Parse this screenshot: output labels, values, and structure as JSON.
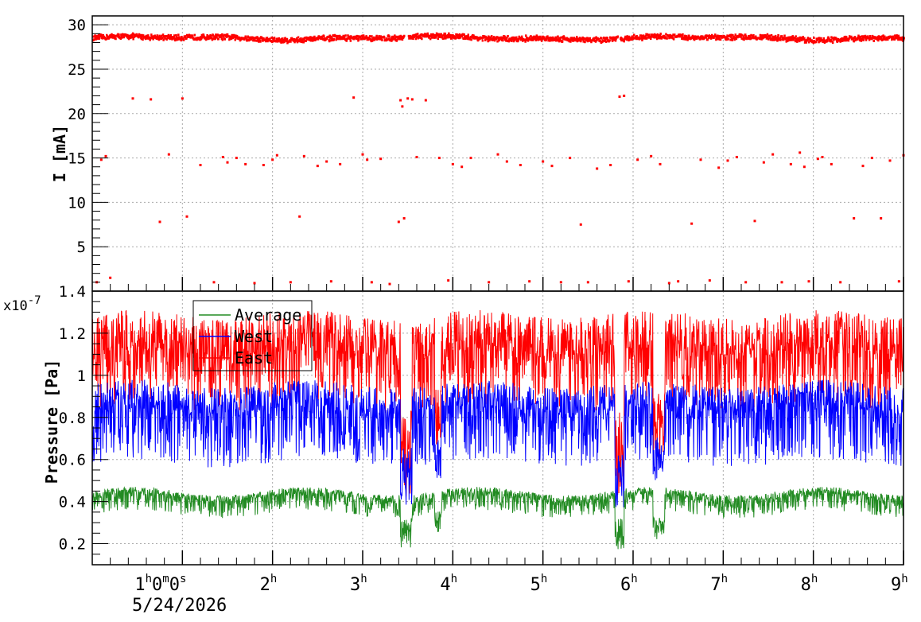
{
  "chart_data": [
    {
      "type": "scatter",
      "ylabel": "I [mA]",
      "ylim": [
        0,
        31
      ],
      "xlim": [
        0,
        9
      ],
      "grid": true,
      "y_ticks": [
        "5",
        "10",
        "15",
        "20",
        "25",
        "30"
      ],
      "series": [
        {
          "color": "#ff0000",
          "band_level": 28.5,
          "band_noise": 0.35,
          "x": [
            0.05,
            0.1,
            0.15,
            0.2,
            0.45,
            0.65,
            0.75,
            0.85,
            1.0,
            1.05,
            1.2,
            1.35,
            1.45,
            1.5,
            1.6,
            1.7,
            1.8,
            1.9,
            2.0,
            2.05,
            2.2,
            2.3,
            2.35,
            2.5,
            2.6,
            2.65,
            2.75,
            2.9,
            3.0,
            3.05,
            3.1,
            3.2,
            3.3,
            3.4,
            3.42,
            3.44,
            3.46,
            3.5,
            3.55,
            3.6,
            3.7,
            3.85,
            3.95,
            4.0,
            4.1,
            4.2,
            4.4,
            4.5,
            4.6,
            4.75,
            4.85,
            5.0,
            5.1,
            5.2,
            5.3,
            5.42,
            5.5,
            5.6,
            5.75,
            5.85,
            5.9,
            5.95,
            6.05,
            6.2,
            6.3,
            6.4,
            6.5,
            6.65,
            6.75,
            6.85,
            6.95,
            7.05,
            7.15,
            7.25,
            7.35,
            7.45,
            7.55,
            7.65,
            7.75,
            7.85,
            7.9,
            7.95,
            8.05,
            8.1,
            8.2,
            8.3,
            8.45,
            8.55,
            8.65,
            8.75,
            8.85,
            8.95,
            9.0
          ],
          "y": [
            1.0,
            14.8,
            15.2,
            1.5,
            21.7,
            21.6,
            7.8,
            15.4,
            21.7,
            8.4,
            14.2,
            1.0,
            15.1,
            14.5,
            15.0,
            14.3,
            0.9,
            14.2,
            14.8,
            15.3,
            1.0,
            8.4,
            15.2,
            14.1,
            14.6,
            1.1,
            14.3,
            21.8,
            15.4,
            14.8,
            1.0,
            14.9,
            0.8,
            7.8,
            21.5,
            20.8,
            8.2,
            21.7,
            21.6,
            15.1,
            21.5,
            15.0,
            1.2,
            14.3,
            14.0,
            15.0,
            1.0,
            15.4,
            14.6,
            14.2,
            1.1,
            14.6,
            14.1,
            1.0,
            15.0,
            7.5,
            1.0,
            13.8,
            14.2,
            21.9,
            22.0,
            1.1,
            14.8,
            15.2,
            14.3,
            0.9,
            1.1,
            7.6,
            14.8,
            1.2,
            13.9,
            14.7,
            15.1,
            1.0,
            7.9,
            14.5,
            15.4,
            1.0,
            14.3,
            15.6,
            14.0,
            1.1,
            14.9,
            15.1,
            14.3,
            1.0,
            8.2,
            14.1,
            15.0,
            8.2,
            14.7,
            1.1,
            15.3
          ]
        }
      ]
    },
    {
      "type": "line",
      "ylabel": "Pressure [Pa]",
      "y_exponent_label": "x10",
      "y_exponent": "-7",
      "ylim": [
        0.1,
        1.4
      ],
      "xlim": [
        0,
        9
      ],
      "grid": true,
      "y_ticks": [
        "0.2",
        "0.4",
        "0.6",
        "0.8",
        "1",
        "1.2",
        "1.4"
      ],
      "x_ticks": [
        {
          "value": 1,
          "label": "1",
          "units": [
            "h",
            "0",
            "m",
            "0",
            "s"
          ]
        },
        {
          "value": 2,
          "label": "2",
          "units": [
            "h"
          ]
        },
        {
          "value": 3,
          "label": "3",
          "units": [
            "h"
          ]
        },
        {
          "value": 4,
          "label": "4",
          "units": [
            "h"
          ]
        },
        {
          "value": 5,
          "label": "5",
          "units": [
            "h"
          ]
        },
        {
          "value": 6,
          "label": "6",
          "units": [
            "h"
          ]
        },
        {
          "value": 7,
          "label": "7",
          "units": [
            "h"
          ]
        },
        {
          "value": 8,
          "label": "8",
          "units": [
            "h"
          ]
        },
        {
          "value": 9,
          "label": "9",
          "units": [
            "h"
          ]
        }
      ],
      "date_label": "5/24/2026",
      "legend": {
        "placement": "top-left",
        "entries": [
          "Average",
          "West",
          "East"
        ]
      },
      "series": [
        {
          "name": "East",
          "color": "#ff0000",
          "baseline": 1.12,
          "noise_up": 0.17,
          "noise_down": 0.28
        },
        {
          "name": "West",
          "color": "#0000ff",
          "baseline": 0.84,
          "noise_up": 0.12,
          "noise_down": 0.26
        },
        {
          "name": "Average",
          "color": "#228b22",
          "baseline": 0.42,
          "noise_up": 0.03,
          "noise_down": 0.08
        }
      ],
      "dips": [
        {
          "x_start": 3.42,
          "x_end": 3.55,
          "east_min": 0.42,
          "west_min": 0.38,
          "average_min": 0.18
        },
        {
          "x_start": 3.8,
          "x_end": 3.87,
          "east_min": 0.65,
          "west_min": 0.5,
          "average_min": 0.25
        },
        {
          "x_start": 5.8,
          "x_end": 5.9,
          "east_min": 0.4,
          "west_min": 0.35,
          "average_min": 0.17
        },
        {
          "x_start": 6.22,
          "x_end": 6.35,
          "east_min": 0.6,
          "west_min": 0.5,
          "average_min": 0.22
        }
      ]
    }
  ]
}
